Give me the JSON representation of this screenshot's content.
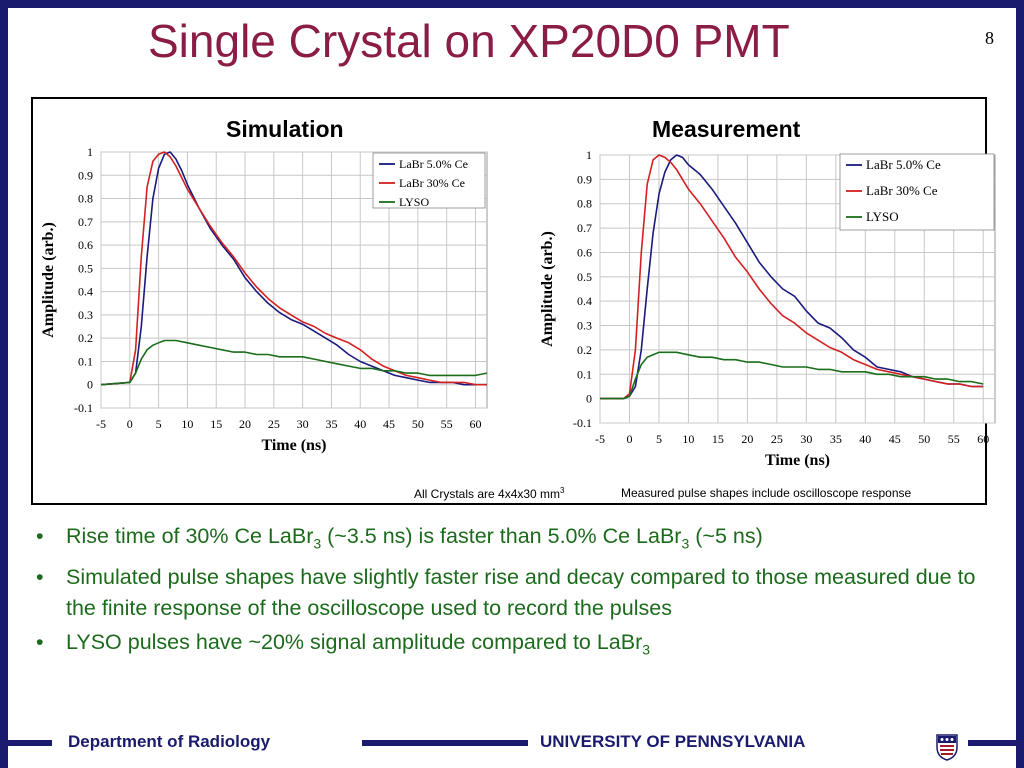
{
  "slide": {
    "title": "Single Crystal on XP20D0 PMT",
    "page_number": "8",
    "caption_left": "All Crystals are 4x4x30 mm",
    "caption_left_sup": "3",
    "caption_right": "Measured pulse shapes include oscilloscope response",
    "bullets": [
      {
        "parts": [
          "Rise time of 30% Ce LaBr",
          "3",
          " (~3.5 ns) is faster than 5.0% Ce LaBr",
          "3",
          " (~5 ns)"
        ]
      },
      {
        "parts": [
          "Simulated pulse shapes have slightly faster rise and decay compared to those measured due to the finite response of the oscilloscope used to record the pulses"
        ]
      },
      {
        "parts": [
          "LYSO pulses have ~20% signal amplitude compared to LaBr",
          "3"
        ]
      }
    ],
    "footer_left": "Department of Radiology",
    "footer_right": "UNIVERSITY OF PENNSYLVANIA",
    "colors": {
      "title": "#8b1c46",
      "bullets": "#1c6b1c",
      "frame": "#1a1a6e",
      "labr5": "#1a1a80",
      "labr30": "#d42020",
      "lyso": "#1a6e1a"
    }
  },
  "chart_data": [
    {
      "type": "line",
      "title": "Simulation",
      "xlabel": "Time (ns)",
      "ylabel": "Amplitude (arb.)",
      "xlim": [
        -5,
        62
      ],
      "ylim": [
        -0.1,
        1.0
      ],
      "xticks": [
        "-5",
        "0",
        "5",
        "10",
        "15",
        "20",
        "25",
        "30",
        "35",
        "40",
        "45",
        "50",
        "55",
        "60"
      ],
      "yticks": [
        "-0.1",
        "0",
        "0.1",
        "0.2",
        "0.3",
        "0.4",
        "0.5",
        "0.6",
        "0.7",
        "0.8",
        "0.9",
        "1"
      ],
      "grid": true,
      "legend_position": "top-right",
      "series": [
        {
          "name": "LaBr 5.0% Ce",
          "x": [
            -5,
            0,
            1,
            2,
            3,
            4,
            5,
            6,
            7,
            8,
            9,
            10,
            12,
            14,
            16,
            18,
            20,
            22,
            24,
            26,
            28,
            30,
            32,
            34,
            36,
            38,
            40,
            42,
            44,
            46,
            48,
            50,
            52,
            54,
            56,
            58,
            60,
            62
          ],
          "y": [
            0,
            0.01,
            0.05,
            0.25,
            0.55,
            0.8,
            0.93,
            0.99,
            1.0,
            0.97,
            0.92,
            0.86,
            0.76,
            0.67,
            0.6,
            0.54,
            0.46,
            0.4,
            0.35,
            0.31,
            0.28,
            0.26,
            0.23,
            0.2,
            0.17,
            0.13,
            0.1,
            0.08,
            0.06,
            0.04,
            0.03,
            0.02,
            0.01,
            0.01,
            0.01,
            0.0,
            0.0,
            0.0
          ]
        },
        {
          "name": "LaBr 30% Ce",
          "x": [
            -5,
            0,
            1,
            2,
            3,
            4,
            5,
            6,
            7,
            8,
            9,
            10,
            12,
            14,
            16,
            18,
            20,
            22,
            24,
            26,
            28,
            30,
            32,
            34,
            36,
            38,
            40,
            42,
            44,
            46,
            48,
            50,
            52,
            54,
            56,
            58,
            60,
            62
          ],
          "y": [
            0,
            0.01,
            0.15,
            0.55,
            0.85,
            0.96,
            0.99,
            1.0,
            0.98,
            0.94,
            0.89,
            0.84,
            0.76,
            0.68,
            0.61,
            0.55,
            0.48,
            0.42,
            0.37,
            0.33,
            0.3,
            0.27,
            0.25,
            0.22,
            0.2,
            0.18,
            0.15,
            0.11,
            0.08,
            0.06,
            0.04,
            0.03,
            0.02,
            0.01,
            0.01,
            0.01,
            0.0,
            0.0
          ]
        },
        {
          "name": "LYSO",
          "x": [
            -5,
            0,
            1,
            2,
            3,
            4,
            5,
            6,
            8,
            10,
            12,
            14,
            16,
            18,
            20,
            22,
            24,
            26,
            28,
            30,
            32,
            34,
            36,
            38,
            40,
            42,
            44,
            46,
            48,
            50,
            52,
            54,
            56,
            58,
            60,
            62
          ],
          "y": [
            0,
            0.01,
            0.05,
            0.11,
            0.15,
            0.17,
            0.18,
            0.19,
            0.19,
            0.18,
            0.17,
            0.16,
            0.15,
            0.14,
            0.14,
            0.13,
            0.13,
            0.12,
            0.12,
            0.12,
            0.11,
            0.1,
            0.09,
            0.08,
            0.07,
            0.07,
            0.06,
            0.06,
            0.05,
            0.05,
            0.04,
            0.04,
            0.04,
            0.04,
            0.04,
            0.05
          ]
        }
      ]
    },
    {
      "type": "line",
      "title": "Measurement",
      "xlabel": "Time (ns)",
      "ylabel": "Amplitude (arb.)",
      "xlim": [
        -5,
        62
      ],
      "ylim": [
        -0.1,
        1.0
      ],
      "xticks": [
        "-5",
        "0",
        "5",
        "10",
        "15",
        "20",
        "25",
        "30",
        "35",
        "40",
        "45",
        "50",
        "55",
        "60"
      ],
      "yticks": [
        "-0.1",
        "0",
        "0.1",
        "0.2",
        "0.3",
        "0.4",
        "0.5",
        "0.6",
        "0.7",
        "0.8",
        "0.9",
        "1"
      ],
      "grid": true,
      "legend_position": "top-right",
      "series": [
        {
          "name": "LaBr 5.0% Ce",
          "x": [
            -5,
            -1,
            0,
            1,
            2,
            3,
            4,
            5,
            6,
            7,
            8,
            9,
            10,
            12,
            14,
            16,
            18,
            20,
            22,
            24,
            26,
            28,
            30,
            32,
            34,
            36,
            38,
            40,
            42,
            44,
            46,
            48,
            50,
            52,
            54,
            56,
            58,
            60
          ],
          "y": [
            0,
            0,
            0.01,
            0.05,
            0.2,
            0.45,
            0.68,
            0.84,
            0.93,
            0.98,
            1.0,
            0.99,
            0.96,
            0.92,
            0.86,
            0.79,
            0.72,
            0.64,
            0.56,
            0.5,
            0.45,
            0.42,
            0.36,
            0.31,
            0.29,
            0.25,
            0.2,
            0.17,
            0.13,
            0.12,
            0.11,
            0.09,
            0.08,
            0.07,
            0.06,
            0.06,
            0.05,
            0.05
          ]
        },
        {
          "name": "LaBr 30% Ce",
          "x": [
            -5,
            -1,
            0,
            1,
            2,
            3,
            4,
            5,
            6,
            7,
            8,
            9,
            10,
            12,
            14,
            16,
            18,
            20,
            22,
            24,
            26,
            28,
            30,
            32,
            34,
            36,
            38,
            40,
            42,
            44,
            46,
            48,
            50,
            52,
            54,
            56,
            58,
            60
          ],
          "y": [
            0,
            0,
            0.02,
            0.2,
            0.6,
            0.88,
            0.98,
            1.0,
            0.99,
            0.97,
            0.94,
            0.9,
            0.86,
            0.8,
            0.73,
            0.66,
            0.58,
            0.52,
            0.45,
            0.39,
            0.34,
            0.31,
            0.27,
            0.24,
            0.21,
            0.19,
            0.16,
            0.14,
            0.12,
            0.11,
            0.1,
            0.09,
            0.08,
            0.07,
            0.06,
            0.06,
            0.05,
            0.05
          ]
        },
        {
          "name": "LYSO",
          "x": [
            -5,
            -1,
            0,
            1,
            2,
            3,
            4,
            5,
            6,
            8,
            10,
            12,
            14,
            16,
            18,
            20,
            22,
            24,
            26,
            28,
            30,
            32,
            34,
            36,
            38,
            40,
            42,
            44,
            46,
            48,
            50,
            52,
            54,
            56,
            58,
            60
          ],
          "y": [
            0,
            0,
            0.01,
            0.08,
            0.14,
            0.17,
            0.18,
            0.19,
            0.19,
            0.19,
            0.18,
            0.17,
            0.17,
            0.16,
            0.16,
            0.15,
            0.15,
            0.14,
            0.13,
            0.13,
            0.13,
            0.12,
            0.12,
            0.11,
            0.11,
            0.11,
            0.1,
            0.1,
            0.09,
            0.09,
            0.09,
            0.08,
            0.08,
            0.07,
            0.07,
            0.06
          ]
        }
      ]
    }
  ]
}
